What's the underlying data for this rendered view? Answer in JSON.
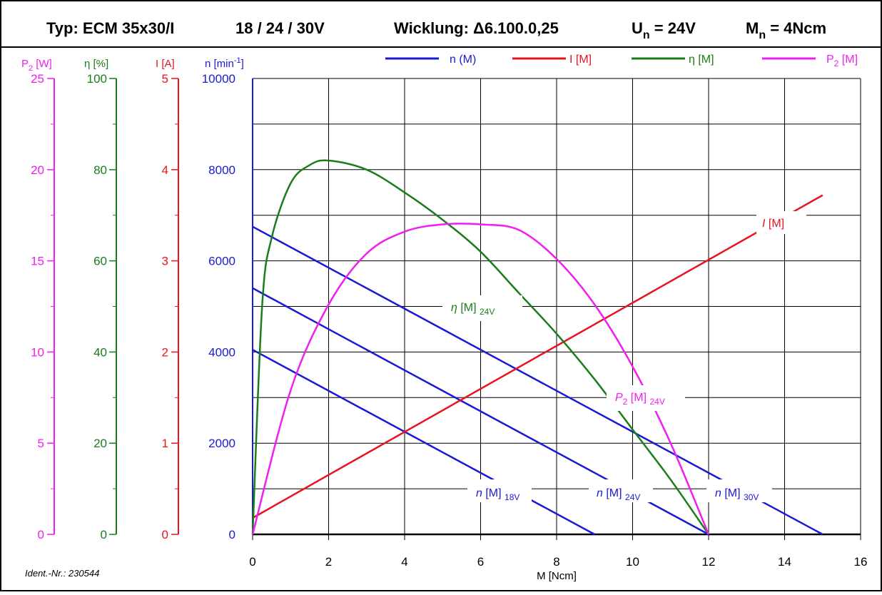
{
  "header": {
    "type": "Typ: ECM 35x30/I",
    "voltages": "18 / 24 / 30V",
    "winding": "Wicklung: Δ6.100.0,25",
    "un_prefix": "U",
    "un_sub": "n",
    "un_suffix": " = 24V",
    "mn_prefix": "M",
    "mn_sub": "n",
    "mn_suffix": " = 4Ncm"
  },
  "ident": "Ident.-Nr.: 230544",
  "colors": {
    "n": "#1a1ad6",
    "i": "#e8141e",
    "eta": "#1a7d1a",
    "p2": "#f01ef0",
    "axis": "#000000"
  },
  "legend": [
    {
      "key": "n",
      "label": "n (M)",
      "color": "#1a1ad6"
    },
    {
      "key": "i",
      "label": "I [M]",
      "color": "#e8141e"
    },
    {
      "key": "eta",
      "label": "η [M]",
      "color": "#1a7d1a"
    },
    {
      "key": "p2",
      "label_main": "P",
      "label_sub": "2",
      "label_rest": " [M]",
      "color": "#f01ef0"
    }
  ],
  "axes": {
    "p2": {
      "title_main": "P",
      "title_sub": "2",
      "title_rest": " [W]",
      "ticks": [
        "0",
        "5",
        "10",
        "15",
        "20",
        "25"
      ]
    },
    "eta": {
      "title": "η [%]",
      "ticks": [
        "0",
        "20",
        "40",
        "60",
        "80",
        "100"
      ]
    },
    "i": {
      "title": "I [A]",
      "ticks": [
        "0",
        "1",
        "2",
        "3",
        "4",
        "5"
      ]
    },
    "n": {
      "title_main": "n [min",
      "title_sup": "-1",
      "title_rest": "]",
      "ticks": [
        "0",
        "2000",
        "4000",
        "6000",
        "8000",
        "10000"
      ]
    },
    "x": {
      "title": "M [Ncm]",
      "ticks": [
        "0",
        "2",
        "4",
        "6",
        "8",
        "10",
        "12",
        "14",
        "16"
      ]
    }
  },
  "chart_data": {
    "type": "line",
    "xlabel": "M [Ncm]",
    "xlim": [
      0,
      16
    ],
    "ylabel_n": "n [min-1]",
    "ylim_n": [
      0,
      10000
    ],
    "ylim_i": [
      0,
      5
    ],
    "ylim_eta": [
      0,
      100
    ],
    "ylim_p2": [
      0,
      25
    ],
    "grid": true,
    "legend_position": "top",
    "series": [
      {
        "name": "n (M)",
        "label": "n [M] 18V",
        "axis": "n",
        "x": [
          0,
          9
        ],
        "y": [
          4050,
          0
        ]
      },
      {
        "name": "n (M)",
        "label": "n [M] 24V",
        "axis": "n",
        "x": [
          0,
          12
        ],
        "y": [
          5400,
          0
        ]
      },
      {
        "name": "n (M)",
        "label": "n [M] 30V",
        "axis": "n",
        "x": [
          0,
          15
        ],
        "y": [
          6750,
          0
        ]
      },
      {
        "name": "I [M]",
        "axis": "i",
        "x": [
          0,
          15
        ],
        "y": [
          0.18,
          3.72
        ]
      },
      {
        "name": "η [M]",
        "label": "η [M] 24V",
        "axis": "eta",
        "x": [
          0,
          0.25,
          0.5,
          1,
          1.5,
          2,
          3,
          4,
          5,
          6,
          7,
          8,
          9,
          10,
          11,
          12
        ],
        "y": [
          0,
          50,
          65,
          77,
          81,
          82,
          80,
          75,
          69,
          62,
          53,
          44,
          34,
          23,
          12,
          0
        ]
      },
      {
        "name": "P2 [M]",
        "label": "P2 [M] 24V",
        "axis": "p2",
        "x": [
          0,
          1,
          2,
          3,
          4,
          5,
          6,
          7,
          8,
          9,
          10,
          11,
          12
        ],
        "y": [
          0,
          7.9,
          12.6,
          15.4,
          16.6,
          17.0,
          17.0,
          16.7,
          15.1,
          12.6,
          9.2,
          5.0,
          0
        ]
      }
    ],
    "annotations": [
      {
        "main": "n",
        "rest": " [M] ",
        "sub": "18V"
      },
      {
        "main": "n",
        "rest": " [M] ",
        "sub": "24V"
      },
      {
        "main": "n",
        "rest": " [M] ",
        "sub": "30V"
      },
      {
        "main": "η",
        "rest": " [M] ",
        "sub": "24V"
      },
      {
        "main": "P",
        "sub1": "2",
        "rest": " [M] ",
        "sub": "24V"
      },
      {
        "main": "I",
        "rest": " [M]"
      }
    ]
  }
}
